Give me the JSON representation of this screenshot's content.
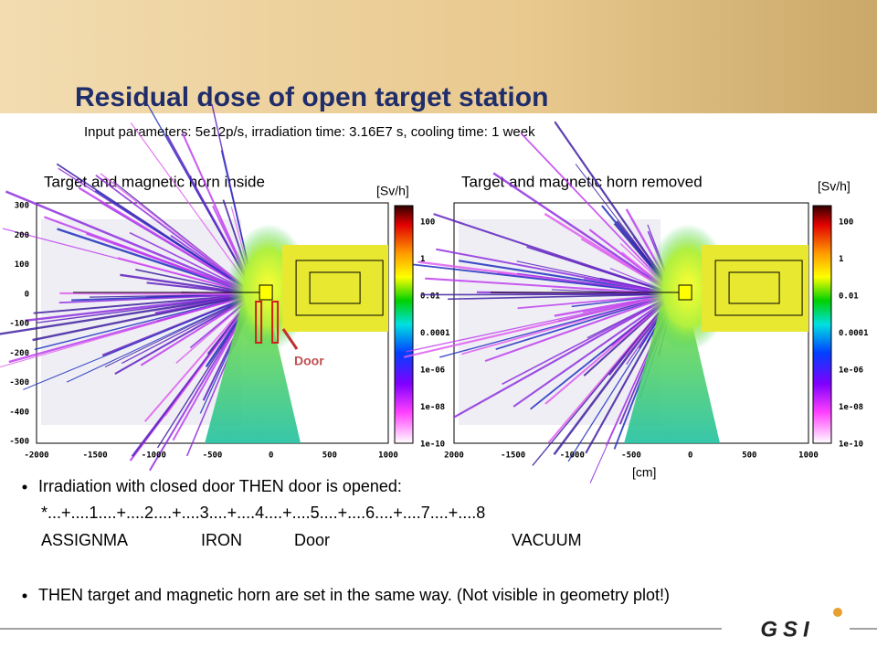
{
  "title": "Residual dose of open target station",
  "subtitle": "Input parameters: 5e12p/s, irradiation time: 3.16E7 s, cooling time: 1 week",
  "plots": [
    {
      "title": "Target and magnetic horn inside",
      "unit": "[Sv/h]",
      "yticks": [
        "300",
        "200",
        "100",
        "0",
        "-100",
        "-200",
        "-300",
        "-400",
        "-500"
      ],
      "xticks": [
        "-2000",
        "-1500",
        "-1000",
        "-500",
        "0",
        "500",
        "1000"
      ],
      "colorbar_ticks": [
        "100",
        "1",
        "0.01",
        "0.0001",
        "1e-06",
        "1e-08",
        "1e-10"
      ],
      "annotation": "Door"
    },
    {
      "title": "Target and magnetic horn removed",
      "unit": "[Sv/h]",
      "xticks": [
        "2000",
        "-1500",
        "-1000",
        "-500",
        "0",
        "500",
        "1000"
      ],
      "colorbar_ticks": [
        "100",
        "1",
        "0.01",
        "0.0001",
        "1e-06",
        "1e-08",
        "1e-10"
      ],
      "x_label": "[cm]"
    }
  ],
  "bullets": [
    {
      "text": "Irradiation with closed door THEN door is opened:",
      "code": "*...+....1....+....2....+....3....+....4....+....5....+....6....+....7....+....8",
      "card": [
        "ASSIGNMA",
        "IRON",
        "Door",
        "VACUUM"
      ]
    },
    {
      "text": "THEN target and magnetic horn are set in the same way. (Not visible in geometry plot!)"
    }
  ],
  "logo": "GSI"
}
